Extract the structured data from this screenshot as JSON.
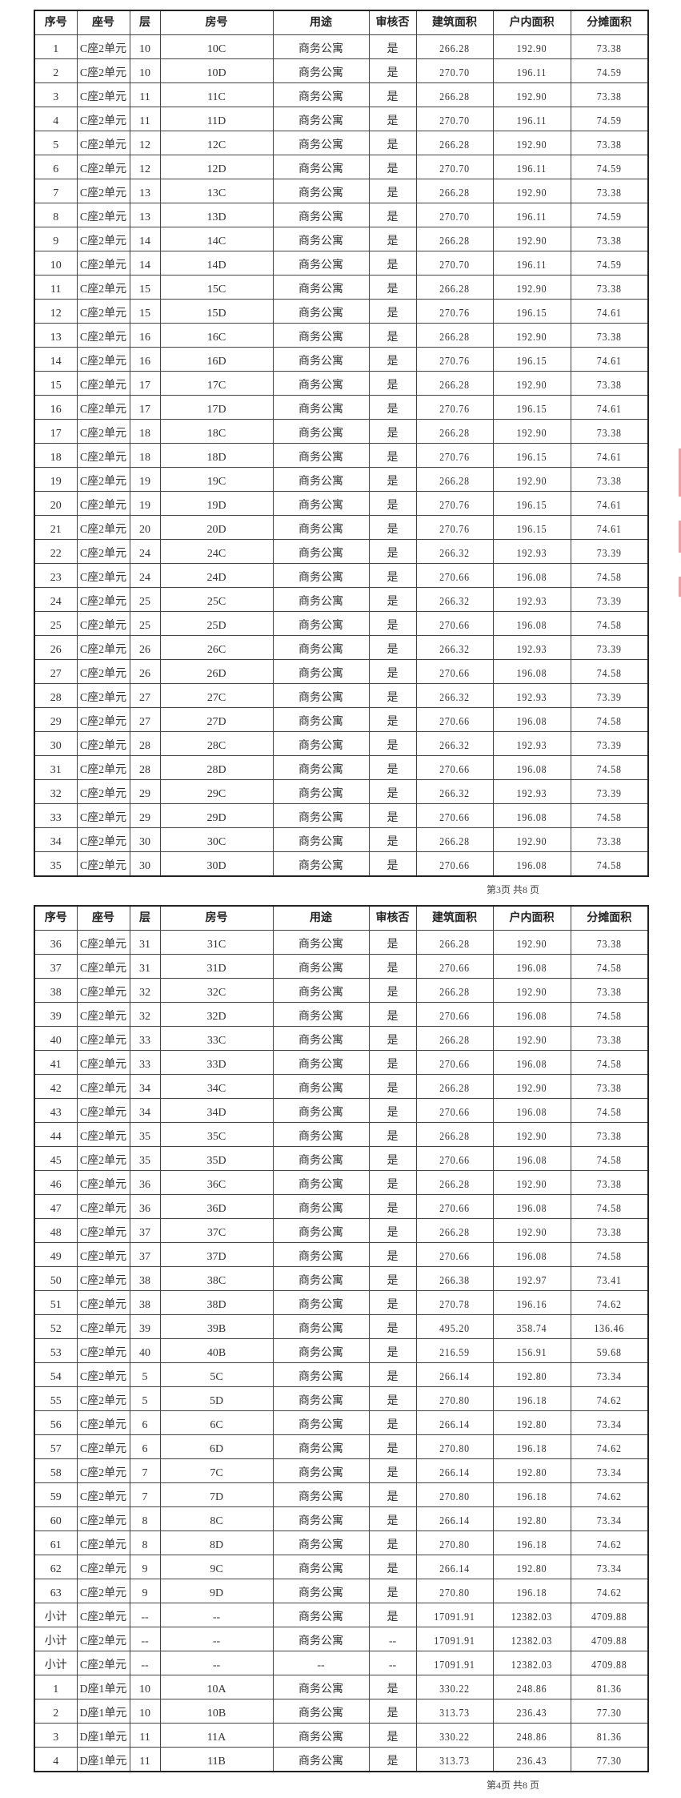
{
  "headers": [
    "序号",
    "座号",
    "层",
    "房号",
    "用途",
    "审核否",
    "建筑面积",
    "户内面积",
    "分摊面积"
  ],
  "page1": {
    "footer": "第3页 共8 页",
    "rows": [
      [
        "1",
        "C座2单元",
        "10",
        "10C",
        "商务公寓",
        "是",
        "266.28",
        "192.90",
        "73.38"
      ],
      [
        "2",
        "C座2单元",
        "10",
        "10D",
        "商务公寓",
        "是",
        "270.70",
        "196.11",
        "74.59"
      ],
      [
        "3",
        "C座2单元",
        "11",
        "11C",
        "商务公寓",
        "是",
        "266.28",
        "192.90",
        "73.38"
      ],
      [
        "4",
        "C座2单元",
        "11",
        "11D",
        "商务公寓",
        "是",
        "270.70",
        "196.11",
        "74.59"
      ],
      [
        "5",
        "C座2单元",
        "12",
        "12C",
        "商务公寓",
        "是",
        "266.28",
        "192.90",
        "73.38"
      ],
      [
        "6",
        "C座2单元",
        "12",
        "12D",
        "商务公寓",
        "是",
        "270.70",
        "196.11",
        "74.59"
      ],
      [
        "7",
        "C座2单元",
        "13",
        "13C",
        "商务公寓",
        "是",
        "266.28",
        "192.90",
        "73.38"
      ],
      [
        "8",
        "C座2单元",
        "13",
        "13D",
        "商务公寓",
        "是",
        "270.70",
        "196.11",
        "74.59"
      ],
      [
        "9",
        "C座2单元",
        "14",
        "14C",
        "商务公寓",
        "是",
        "266.28",
        "192.90",
        "73.38"
      ],
      [
        "10",
        "C座2单元",
        "14",
        "14D",
        "商务公寓",
        "是",
        "270.70",
        "196.11",
        "74.59"
      ],
      [
        "11",
        "C座2单元",
        "15",
        "15C",
        "商务公寓",
        "是",
        "266.28",
        "192.90",
        "73.38"
      ],
      [
        "12",
        "C座2单元",
        "15",
        "15D",
        "商务公寓",
        "是",
        "270.76",
        "196.15",
        "74.61"
      ],
      [
        "13",
        "C座2单元",
        "16",
        "16C",
        "商务公寓",
        "是",
        "266.28",
        "192.90",
        "73.38"
      ],
      [
        "14",
        "C座2单元",
        "16",
        "16D",
        "商务公寓",
        "是",
        "270.76",
        "196.15",
        "74.61"
      ],
      [
        "15",
        "C座2单元",
        "17",
        "17C",
        "商务公寓",
        "是",
        "266.28",
        "192.90",
        "73.38"
      ],
      [
        "16",
        "C座2单元",
        "17",
        "17D",
        "商务公寓",
        "是",
        "270.76",
        "196.15",
        "74.61"
      ],
      [
        "17",
        "C座2单元",
        "18",
        "18C",
        "商务公寓",
        "是",
        "266.28",
        "192.90",
        "73.38"
      ],
      [
        "18",
        "C座2单元",
        "18",
        "18D",
        "商务公寓",
        "是",
        "270.76",
        "196.15",
        "74.61"
      ],
      [
        "19",
        "C座2单元",
        "19",
        "19C",
        "商务公寓",
        "是",
        "266.28",
        "192.90",
        "73.38"
      ],
      [
        "20",
        "C座2单元",
        "19",
        "19D",
        "商务公寓",
        "是",
        "270.76",
        "196.15",
        "74.61"
      ],
      [
        "21",
        "C座2单元",
        "20",
        "20D",
        "商务公寓",
        "是",
        "270.76",
        "196.15",
        "74.61"
      ],
      [
        "22",
        "C座2单元",
        "24",
        "24C",
        "商务公寓",
        "是",
        "266.32",
        "192.93",
        "73.39"
      ],
      [
        "23",
        "C座2单元",
        "24",
        "24D",
        "商务公寓",
        "是",
        "270.66",
        "196.08",
        "74.58"
      ],
      [
        "24",
        "C座2单元",
        "25",
        "25C",
        "商务公寓",
        "是",
        "266.32",
        "192.93",
        "73.39"
      ],
      [
        "25",
        "C座2单元",
        "25",
        "25D",
        "商务公寓",
        "是",
        "270.66",
        "196.08",
        "74.58"
      ],
      [
        "26",
        "C座2单元",
        "26",
        "26C",
        "商务公寓",
        "是",
        "266.32",
        "192.93",
        "73.39"
      ],
      [
        "27",
        "C座2单元",
        "26",
        "26D",
        "商务公寓",
        "是",
        "270.66",
        "196.08",
        "74.58"
      ],
      [
        "28",
        "C座2单元",
        "27",
        "27C",
        "商务公寓",
        "是",
        "266.32",
        "192.93",
        "73.39"
      ],
      [
        "29",
        "C座2单元",
        "27",
        "27D",
        "商务公寓",
        "是",
        "270.66",
        "196.08",
        "74.58"
      ],
      [
        "30",
        "C座2单元",
        "28",
        "28C",
        "商务公寓",
        "是",
        "266.32",
        "192.93",
        "73.39"
      ],
      [
        "31",
        "C座2单元",
        "28",
        "28D",
        "商务公寓",
        "是",
        "270.66",
        "196.08",
        "74.58"
      ],
      [
        "32",
        "C座2单元",
        "29",
        "29C",
        "商务公寓",
        "是",
        "266.32",
        "192.93",
        "73.39"
      ],
      [
        "33",
        "C座2单元",
        "29",
        "29D",
        "商务公寓",
        "是",
        "270.66",
        "196.08",
        "74.58"
      ],
      [
        "34",
        "C座2单元",
        "30",
        "30C",
        "商务公寓",
        "是",
        "266.28",
        "192.90",
        "73.38"
      ],
      [
        "35",
        "C座2单元",
        "30",
        "30D",
        "商务公寓",
        "是",
        "270.66",
        "196.08",
        "74.58"
      ]
    ]
  },
  "page2": {
    "footer": "第4页 共8 页",
    "rows": [
      [
        "36",
        "C座2单元",
        "31",
        "31C",
        "商务公寓",
        "是",
        "266.28",
        "192.90",
        "73.38"
      ],
      [
        "37",
        "C座2单元",
        "31",
        "31D",
        "商务公寓",
        "是",
        "270.66",
        "196.08",
        "74.58"
      ],
      [
        "38",
        "C座2单元",
        "32",
        "32C",
        "商务公寓",
        "是",
        "266.28",
        "192.90",
        "73.38"
      ],
      [
        "39",
        "C座2单元",
        "32",
        "32D",
        "商务公寓",
        "是",
        "270.66",
        "196.08",
        "74.58"
      ],
      [
        "40",
        "C座2单元",
        "33",
        "33C",
        "商务公寓",
        "是",
        "266.28",
        "192.90",
        "73.38"
      ],
      [
        "41",
        "C座2单元",
        "33",
        "33D",
        "商务公寓",
        "是",
        "270.66",
        "196.08",
        "74.58"
      ],
      [
        "42",
        "C座2单元",
        "34",
        "34C",
        "商务公寓",
        "是",
        "266.28",
        "192.90",
        "73.38"
      ],
      [
        "43",
        "C座2单元",
        "34",
        "34D",
        "商务公寓",
        "是",
        "270.66",
        "196.08",
        "74.58"
      ],
      [
        "44",
        "C座2单元",
        "35",
        "35C",
        "商务公寓",
        "是",
        "266.28",
        "192.90",
        "73.38"
      ],
      [
        "45",
        "C座2单元",
        "35",
        "35D",
        "商务公寓",
        "是",
        "270.66",
        "196.08",
        "74.58"
      ],
      [
        "46",
        "C座2单元",
        "36",
        "36C",
        "商务公寓",
        "是",
        "266.28",
        "192.90",
        "73.38"
      ],
      [
        "47",
        "C座2单元",
        "36",
        "36D",
        "商务公寓",
        "是",
        "270.66",
        "196.08",
        "74.58"
      ],
      [
        "48",
        "C座2单元",
        "37",
        "37C",
        "商务公寓",
        "是",
        "266.28",
        "192.90",
        "73.38"
      ],
      [
        "49",
        "C座2单元",
        "37",
        "37D",
        "商务公寓",
        "是",
        "270.66",
        "196.08",
        "74.58"
      ],
      [
        "50",
        "C座2单元",
        "38",
        "38C",
        "商务公寓",
        "是",
        "266.38",
        "192.97",
        "73.41"
      ],
      [
        "51",
        "C座2单元",
        "38",
        "38D",
        "商务公寓",
        "是",
        "270.78",
        "196.16",
        "74.62"
      ],
      [
        "52",
        "C座2单元",
        "39",
        "39B",
        "商务公寓",
        "是",
        "495.20",
        "358.74",
        "136.46"
      ],
      [
        "53",
        "C座2单元",
        "40",
        "40B",
        "商务公寓",
        "是",
        "216.59",
        "156.91",
        "59.68"
      ],
      [
        "54",
        "C座2单元",
        "5",
        "5C",
        "商务公寓",
        "是",
        "266.14",
        "192.80",
        "73.34"
      ],
      [
        "55",
        "C座2单元",
        "5",
        "5D",
        "商务公寓",
        "是",
        "270.80",
        "196.18",
        "74.62"
      ],
      [
        "56",
        "C座2单元",
        "6",
        "6C",
        "商务公寓",
        "是",
        "266.14",
        "192.80",
        "73.34"
      ],
      [
        "57",
        "C座2单元",
        "6",
        "6D",
        "商务公寓",
        "是",
        "270.80",
        "196.18",
        "74.62"
      ],
      [
        "58",
        "C座2单元",
        "7",
        "7C",
        "商务公寓",
        "是",
        "266.14",
        "192.80",
        "73.34"
      ],
      [
        "59",
        "C座2单元",
        "7",
        "7D",
        "商务公寓",
        "是",
        "270.80",
        "196.18",
        "74.62"
      ],
      [
        "60",
        "C座2单元",
        "8",
        "8C",
        "商务公寓",
        "是",
        "266.14",
        "192.80",
        "73.34"
      ],
      [
        "61",
        "C座2单元",
        "8",
        "8D",
        "商务公寓",
        "是",
        "270.80",
        "196.18",
        "74.62"
      ],
      [
        "62",
        "C座2单元",
        "9",
        "9C",
        "商务公寓",
        "是",
        "266.14",
        "192.80",
        "73.34"
      ],
      [
        "63",
        "C座2单元",
        "9",
        "9D",
        "商务公寓",
        "是",
        "270.80",
        "196.18",
        "74.62"
      ],
      [
        "小计",
        "C座2单元",
        "--",
        "--",
        "商务公寓",
        "是",
        "17091.91",
        "12382.03",
        "4709.88"
      ],
      [
        "小计",
        "C座2单元",
        "--",
        "--",
        "商务公寓",
        "--",
        "17091.91",
        "12382.03",
        "4709.88"
      ],
      [
        "小计",
        "C座2单元",
        "--",
        "--",
        "--",
        "--",
        "17091.91",
        "12382.03",
        "4709.88"
      ],
      [
        "1",
        "D座1单元",
        "10",
        "10A",
        "商务公寓",
        "是",
        "330.22",
        "248.86",
        "81.36"
      ],
      [
        "2",
        "D座1单元",
        "10",
        "10B",
        "商务公寓",
        "是",
        "313.73",
        "236.43",
        "77.30"
      ],
      [
        "3",
        "D座1单元",
        "11",
        "11A",
        "商务公寓",
        "是",
        "330.22",
        "248.86",
        "81.36"
      ],
      [
        "4",
        "D座1单元",
        "11",
        "11B",
        "商务公寓",
        "是",
        "313.73",
        "236.43",
        "77.30"
      ]
    ]
  },
  "colors": {
    "stamp": "#e4505a",
    "ink": "#333333"
  }
}
